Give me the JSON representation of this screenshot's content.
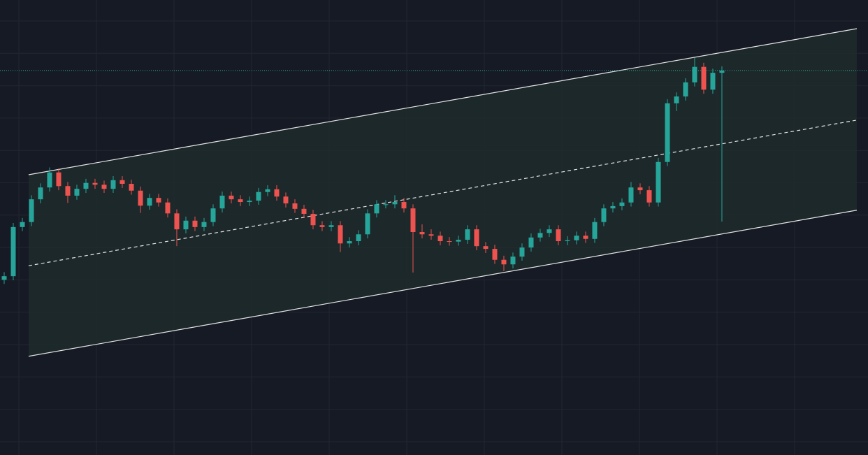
{
  "chart_data": {
    "type": "candlestick",
    "categories": [
      null,
      null,
      null,
      null,
      null,
      null,
      null,
      null,
      null,
      null,
      null,
      null,
      null,
      null,
      null,
      null,
      null,
      null,
      null,
      null,
      null,
      null,
      null,
      null,
      null,
      null,
      null,
      null,
      null,
      null,
      null,
      null,
      null,
      null,
      null,
      null,
      null,
      null,
      null,
      null,
      null,
      null,
      null,
      null,
      null,
      null,
      null,
      null,
      null,
      null,
      null,
      null,
      null,
      null,
      null,
      null,
      null,
      null,
      null,
      null,
      null,
      null,
      null,
      null,
      null,
      null,
      null,
      null,
      null,
      null,
      null,
      null,
      null,
      null,
      null,
      null,
      null,
      null,
      null,
      null
    ],
    "open": [
      38.5,
      39.3,
      50.1,
      51.2,
      56.2,
      58.8,
      62.1,
      59.1,
      57.0,
      58.5,
      59.8,
      59.4,
      58.5,
      60.4,
      59.6,
      58.1,
      54.8,
      56.5,
      55.5,
      53.1,
      49.6,
      51.5,
      50.1,
      51.2,
      54.2,
      57.0,
      56.2,
      55.6,
      55.9,
      57.8,
      58.4,
      56.8,
      55.3,
      54.1,
      53.0,
      50.5,
      50.1,
      50.5,
      46.5,
      47.0,
      48.5,
      53.1,
      55.1,
      55.1,
      55.6,
      54.2,
      49.0,
      48.5,
      48.2,
      47.0,
      46.9,
      47.3,
      49.6,
      45.9,
      45.3,
      42.9,
      41.9,
      43.6,
      45.6,
      47.8,
      48.8,
      49.6,
      47.0,
      47.2,
      48.2,
      47.5,
      51.2,
      54.2,
      54.7,
      55.5,
      58.8,
      58.2,
      55.5,
      64.4,
      77.3,
      78.8,
      81.9,
      85.3,
      80.3,
      84.0
    ],
    "high": [
      40.2,
      51.0,
      52.1,
      57.1,
      59.7,
      63.2,
      63.0,
      60.0,
      59.4,
      60.7,
      60.7,
      60.3,
      61.3,
      61.3,
      60.5,
      59.0,
      57.4,
      57.4,
      56.4,
      54.0,
      52.4,
      52.4,
      52.1,
      55.1,
      57.9,
      57.9,
      57.1,
      56.8,
      58.7,
      59.3,
      59.3,
      57.7,
      56.2,
      55.0,
      53.9,
      51.4,
      51.4,
      51.4,
      47.9,
      49.4,
      54.0,
      56.0,
      56.0,
      57.1,
      56.5,
      55.1,
      50.7,
      49.6,
      49.1,
      47.9,
      48.2,
      50.5,
      50.5,
      46.8,
      46.2,
      43.8,
      44.5,
      46.5,
      48.7,
      49.7,
      50.5,
      50.5,
      48.1,
      49.1,
      49.1,
      52.1,
      55.1,
      55.6,
      56.4,
      60.0,
      59.7,
      59.1,
      65.3,
      78.2,
      79.7,
      82.8,
      87.3,
      86.2,
      84.9,
      85.4
    ],
    "low": [
      37.6,
      38.4,
      49.2,
      50.3,
      55.3,
      57.9,
      58.2,
      55.4,
      56.1,
      57.6,
      58.5,
      57.6,
      57.6,
      58.7,
      57.2,
      53.2,
      53.9,
      54.6,
      52.2,
      45.9,
      48.7,
      49.2,
      49.2,
      50.3,
      53.3,
      55.3,
      54.7,
      54.7,
      55.0,
      56.9,
      55.9,
      54.4,
      53.2,
      52.1,
      49.6,
      49.2,
      49.2,
      44.6,
      45.6,
      46.1,
      47.6,
      52.2,
      54.2,
      54.2,
      53.3,
      40.1,
      47.6,
      47.3,
      46.1,
      46.0,
      46.0,
      46.4,
      45.0,
      44.4,
      42.0,
      40.4,
      41.0,
      42.7,
      44.7,
      46.9,
      47.9,
      46.1,
      46.1,
      46.3,
      46.6,
      46.6,
      50.3,
      53.3,
      53.8,
      54.6,
      57.3,
      54.6,
      54.6,
      63.5,
      75.6,
      77.9,
      81.0,
      79.4,
      79.4,
      51.3
    ],
    "close": [
      39.3,
      50.1,
      51.2,
      56.2,
      58.8,
      62.1,
      59.1,
      57.0,
      58.5,
      59.8,
      59.4,
      58.5,
      60.4,
      59.6,
      58.1,
      54.8,
      56.5,
      55.5,
      53.1,
      49.6,
      51.5,
      50.1,
      51.2,
      54.2,
      57.0,
      56.2,
      55.6,
      55.9,
      57.8,
      58.4,
      56.8,
      55.3,
      54.1,
      53.0,
      50.5,
      50.1,
      50.5,
      46.5,
      47.0,
      48.5,
      53.1,
      55.1,
      55.1,
      55.6,
      54.2,
      49.0,
      48.5,
      48.2,
      47.0,
      46.9,
      47.3,
      49.6,
      45.9,
      45.3,
      42.9,
      41.9,
      43.6,
      45.6,
      47.8,
      48.8,
      49.6,
      47.0,
      47.2,
      48.2,
      47.5,
      51.2,
      54.2,
      54.7,
      55.5,
      58.8,
      58.2,
      55.5,
      64.4,
      77.3,
      78.8,
      81.9,
      85.3,
      80.3,
      84.0,
      84.5
    ],
    "up_color": "#26a69a",
    "down_color": "#ef5350",
    "xlim": [
      -0.46,
      95.08
    ],
    "ylim": [
      0,
      100
    ],
    "last_price_line": true,
    "channel": {
      "x": [
        2.69,
        93.85
      ],
      "upper": [
        61.6,
        93.7
      ],
      "middle": [
        41.6,
        73.6
      ],
      "lower": [
        21.7,
        53.8
      ],
      "color": "#e6e6e6",
      "fill": "#1f2c2b"
    }
  }
}
